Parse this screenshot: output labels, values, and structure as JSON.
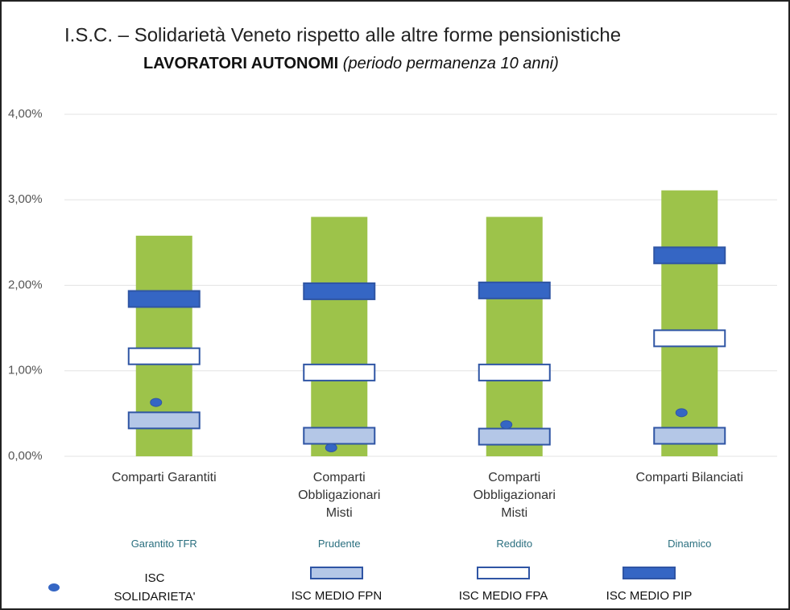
{
  "chart_data": {
    "type": "range",
    "title": "I.S.C. – Solidarietà Veneto rispetto alle altre forme pensionistiche",
    "subtitle": "LAVORATORI AUTONOMI",
    "subtitle_note": "(periodo permanenza 10 anni)",
    "categories": [
      "Comparti Garantiti",
      "Comparti Obbligazionari Misti",
      "Comparti Obbligazionari Misti",
      "Comparti Bilanciati"
    ],
    "subcategories": [
      "Garantito TFR",
      "Prudente",
      "Reddito",
      "Dinamico"
    ],
    "ylim": [
      0,
      4
    ],
    "yticks": [
      {
        "value": 0,
        "label": "0,00%"
      },
      {
        "value": 1,
        "label": "1,00%"
      },
      {
        "value": 2,
        "label": "2,00%"
      },
      {
        "value": 3,
        "label": "3,00%"
      },
      {
        "value": 4,
        "label": "4,00%"
      }
    ],
    "grid": true,
    "series": [
      {
        "color": "#9dc34a",
        "style": "column",
        "values": [
          2.58,
          2.8,
          2.8,
          3.11
        ]
      },
      {
        "name": "ISC SOLIDARIETA' VENETO",
        "color": "#3566c4",
        "style": "dot",
        "values": [
          0.63,
          0.1,
          0.37,
          0.51
        ]
      },
      {
        "name": "ISC MEDIO FPN",
        "color": "#b4c7e7",
        "style": "box",
        "values": [
          0.42,
          0.24,
          0.23,
          0.24
        ]
      },
      {
        "name": "ISC MEDIO FPA",
        "color": "#ffffff",
        "style": "box",
        "values": [
          1.17,
          0.98,
          0.98,
          1.38
        ]
      },
      {
        "name": "ISC MEDIO PIP",
        "color": "#3566c4",
        "style": "box",
        "values": [
          1.84,
          1.93,
          1.94,
          2.35
        ]
      }
    ]
  }
}
